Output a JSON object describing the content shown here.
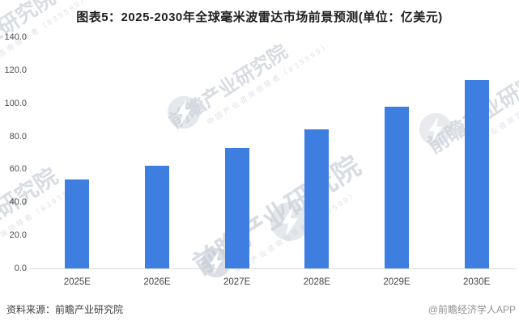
{
  "title": "图表5：2025-2030年全球毫米波雷达市场前景预测(单位：亿美元)",
  "chart_data": {
    "type": "bar",
    "title": "2025-2030年全球毫米波雷达市场前景预测",
    "unit": "亿美元",
    "categories": [
      "2025E",
      "2026E",
      "2027E",
      "2028E",
      "2029E",
      "2030E"
    ],
    "values": [
      54,
      62,
      73,
      84,
      98,
      114
    ],
    "ylim": [
      0,
      140
    ],
    "ytick_step": 20,
    "ytick_labels": [
      "0.0",
      "20.0",
      "40.0",
      "60.0",
      "80.0",
      "100.0",
      "120.0",
      "140.0"
    ],
    "bar_color": "#3d7ee0",
    "grid": false,
    "legend": false,
    "xlabel": "",
    "ylabel": ""
  },
  "footer": {
    "source": "资料来源：前瞻产业研究院",
    "credit": "@前瞻经济学人APP"
  },
  "watermark": {
    "main": "前瞻产业研究院",
    "small": "中国产业咨询领导者（839599）"
  },
  "colors": {
    "bar": "#3d7ee0",
    "baseline": "#d9d9d9",
    "title_text": "#1f1f1f",
    "axis_text": "#4d4d4d",
    "source_text": "#3d3d3d",
    "credit_text": "#919191",
    "watermark": "#b2bac8"
  }
}
